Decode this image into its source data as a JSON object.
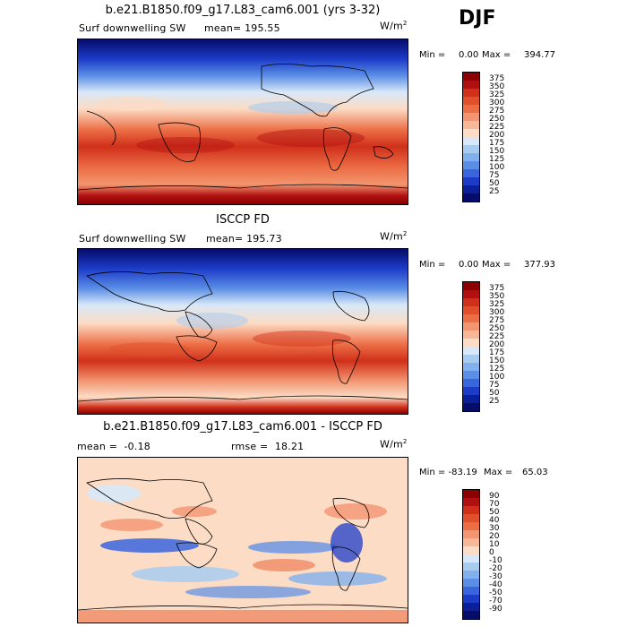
{
  "season": "DJF",
  "panels": [
    {
      "title": "b.e21.B1850.f09_g17.L83_cam6.001 (yrs 3-32)",
      "variable": "Surf downwelling SW",
      "mean_label": "mean= 195.55",
      "rmse_label": "",
      "units": "W/m",
      "units_exp": "2",
      "min_label": "Min =",
      "min_value": "0.00",
      "max_label": "Max =",
      "max_value": "394.77",
      "cbar_labels": [
        "375",
        "350",
        "325",
        "300",
        "275",
        "250",
        "225",
        "200",
        "175",
        "150",
        "125",
        "100",
        "75",
        "50",
        "25"
      ],
      "cbar_colors": [
        "#8b0000",
        "#b01010",
        "#d0301a",
        "#e0502a",
        "#ec6e45",
        "#f29570",
        "#f7b898",
        "#fcdcc5",
        "#d8e8f8",
        "#a8ccf0",
        "#82b0ec",
        "#5b8ee6",
        "#3a66dd",
        "#1c3cc8",
        "#0a1f9a",
        "#050c6a"
      ]
    },
    {
      "title": "ISCCP FD",
      "variable": "Surf downwelling SW",
      "mean_label": "mean= 195.73",
      "rmse_label": "",
      "units": "W/m",
      "units_exp": "2",
      "min_label": "Min =",
      "min_value": "0.00",
      "max_label": "Max =",
      "max_value": "377.93",
      "cbar_labels": [
        "375",
        "350",
        "325",
        "300",
        "275",
        "250",
        "225",
        "200",
        "175",
        "150",
        "125",
        "100",
        "75",
        "50",
        "25"
      ],
      "cbar_colors": [
        "#8b0000",
        "#b01010",
        "#d0301a",
        "#e0502a",
        "#ec6e45",
        "#f29570",
        "#f7b898",
        "#fcdcc5",
        "#d8e8f8",
        "#a8ccf0",
        "#82b0ec",
        "#5b8ee6",
        "#3a66dd",
        "#1c3cc8",
        "#0a1f9a",
        "#050c6a"
      ]
    },
    {
      "title": "b.e21.B1850.f09_g17.L83_cam6.001 - ISCCP FD",
      "variable": "",
      "mean_label": "mean =  -0.18",
      "rmse_label": "rmse =  18.21",
      "units": "W/m",
      "units_exp": "2",
      "min_label": "Min = -83.19",
      "min_value": "",
      "max_label": "Max =",
      "max_value": "65.03",
      "cbar_labels": [
        "90",
        "70",
        "50",
        "40",
        "30",
        "20",
        "10",
        "0",
        "-10",
        "-20",
        "-30",
        "-40",
        "-50",
        "-70",
        "-90"
      ],
      "cbar_colors": [
        "#8b0000",
        "#b01010",
        "#d0301a",
        "#e0502a",
        "#ec6e45",
        "#f29570",
        "#f7b898",
        "#fcdcc5",
        "#d8e8f8",
        "#a8ccf0",
        "#82b0ec",
        "#5b8ee6",
        "#3a66dd",
        "#1c3cc8",
        "#0a1f9a",
        "#050c6a"
      ]
    }
  ]
}
